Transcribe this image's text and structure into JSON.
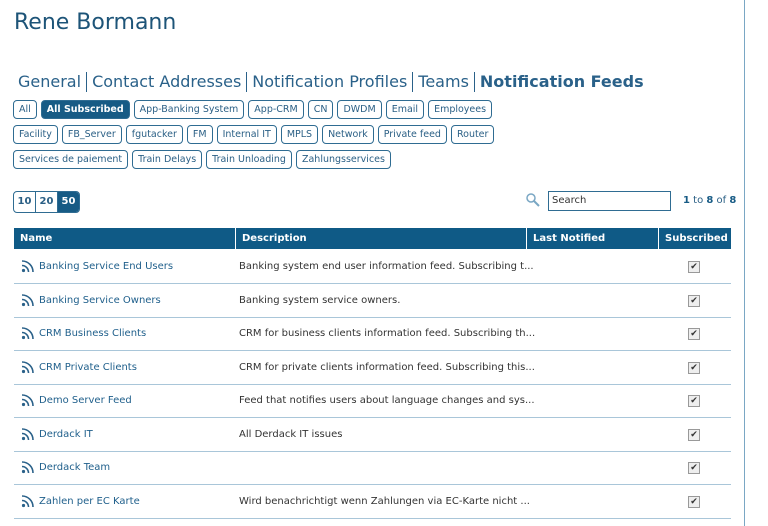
{
  "header": {
    "title": "Rene Bormann"
  },
  "tabs": {
    "items": [
      "General",
      "Contact Addresses",
      "Notification Profiles",
      "Teams",
      "Notification Feeds"
    ],
    "active": 4
  },
  "filters": {
    "rows": [
      [
        "All",
        "All Subscribed",
        "App-Banking System",
        "App-CRM",
        "CN",
        "DWDM",
        "Email",
        "Employees"
      ],
      [
        "Facility",
        "FB_Server",
        "fgutacker",
        "FM",
        "Internal IT",
        "MPLS",
        "Network",
        "Private feed",
        "Router"
      ],
      [
        "Services de paiement",
        "Train Delays",
        "Train Unloading",
        "Zahlungsservices"
      ]
    ],
    "active_row": 0,
    "active_index": 1
  },
  "page_sizes": {
    "items": [
      "10",
      "20",
      "50"
    ],
    "active": 2
  },
  "search": {
    "placeholder": "Search"
  },
  "pagination": {
    "from": "1",
    "to_word": "to",
    "to": "8",
    "of_word": "of",
    "total": "8"
  },
  "table": {
    "columns": [
      "Name",
      "Description",
      "Last Notified",
      "Subscribed"
    ],
    "rows": [
      {
        "name": "Banking Service End Users",
        "description": "Banking system end user information feed. Subscribing t...",
        "subscribed": true
      },
      {
        "name": "Banking Service Owners",
        "description": "Banking system service owners.",
        "subscribed": true
      },
      {
        "name": "CRM Business Clients",
        "description": "CRM for business clients information feed. Subscribing th...",
        "subscribed": true
      },
      {
        "name": "CRM Private Clients",
        "description": "CRM for private clients information feed. Subscribing this...",
        "subscribed": true
      },
      {
        "name": "Demo Server Feed",
        "description": "Feed that notifies users about language changes and sys...",
        "subscribed": true
      },
      {
        "name": "Derdack IT",
        "description": "All Derdack IT issues",
        "subscribed": true
      },
      {
        "name": "Derdack Team",
        "subscribed": true
      },
      {
        "name": "Zahlen per EC Karte",
        "description": "Wird benachrichtigt wenn Zahlungen via EC-Karte nicht ...",
        "subscribed": true
      }
    ]
  }
}
